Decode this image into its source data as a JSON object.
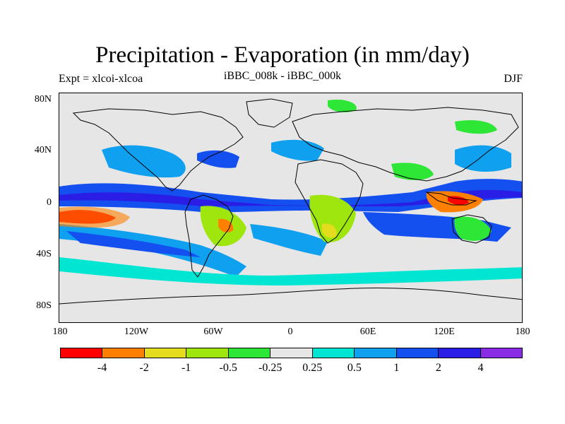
{
  "title": "Precipitation - Evaporation (in mm/day)",
  "left_string": "Expt = xlcoi-xlcoa",
  "center_string": "iBBC_008k - iBBC_000k",
  "right_string": "DJF",
  "lat_labels": [
    "80N",
    "40N",
    "0",
    "40S",
    "80S"
  ],
  "lon_labels": [
    "180",
    "120W",
    "60W",
    "0",
    "60E",
    "120E",
    "180"
  ],
  "colorbar": {
    "colors": [
      "#ff0000",
      "#ff8000",
      "#e6dc1e",
      "#9fe60f",
      "#2ee635",
      "#e6e6e6",
      "#00e6d2",
      "#0fa0f0",
      "#1450f0",
      "#2a1ee6",
      "#8a2be6"
    ],
    "labels": [
      "-4",
      "-2",
      "-1",
      "-0.5",
      "-0.25",
      "0.25",
      "0.5",
      "1",
      "2",
      "4"
    ]
  },
  "background_color": "#e6e6e6"
}
